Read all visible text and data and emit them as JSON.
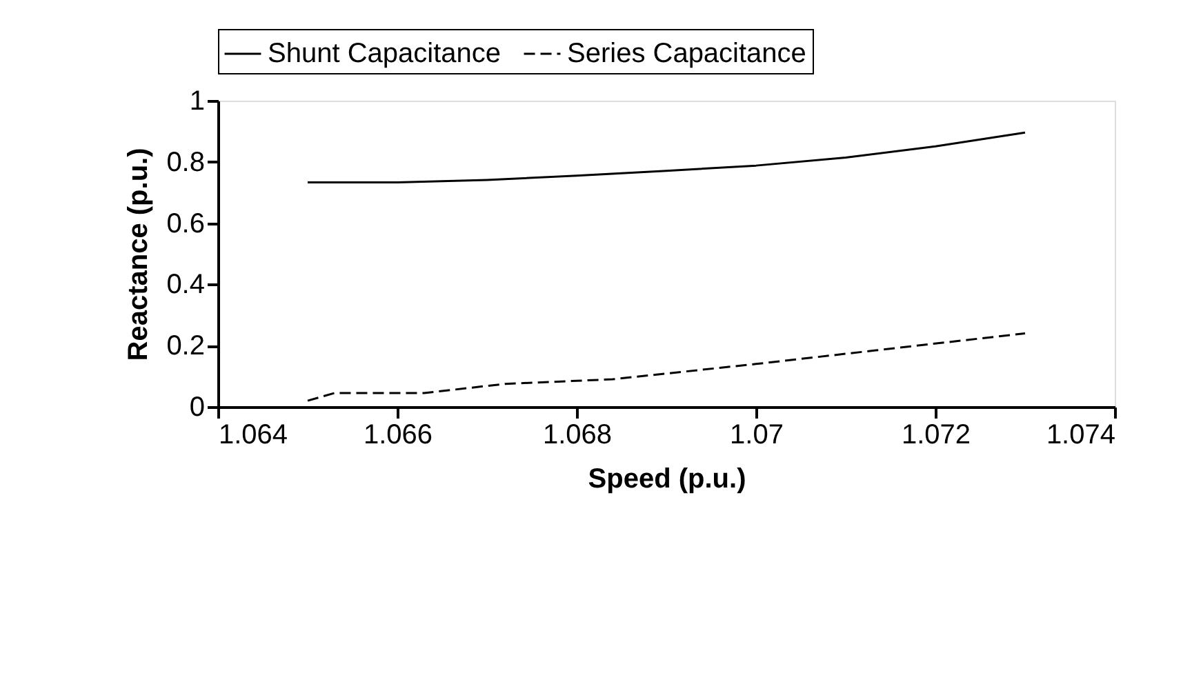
{
  "chart_data": {
    "type": "line",
    "xlabel": "Speed (p.u.)",
    "ylabel": "Reactance (p.u.)",
    "xlim": [
      1.064,
      1.074
    ],
    "xticks": [
      1.064,
      1.066,
      1.068,
      1.07,
      1.072,
      1.074
    ],
    "ylim": [
      0,
      1
    ],
    "yticks": [
      0,
      0.2,
      0.4,
      0.6,
      0.8,
      1
    ],
    "grid": false,
    "legend": "top",
    "marker": "none",
    "series": [
      {
        "name": "Shunt Capacitance",
        "color": "#000000",
        "line_style": "solid",
        "x": [
          1.065,
          1.066,
          1.067,
          1.068,
          1.069,
          1.07,
          1.071,
          1.072,
          1.073
        ],
        "values": [
          0.733,
          0.733,
          0.741,
          0.755,
          0.771,
          0.788,
          0.814,
          0.851,
          0.896
        ]
      },
      {
        "name": "Series Capacitance",
        "color": "#000000",
        "line_style": "dashed",
        "x": [
          1.065,
          1.0653,
          1.0663,
          1.0672,
          1.0684,
          1.07,
          1.073
        ],
        "values": [
          0.02,
          0.045,
          0.045,
          0.075,
          0.09,
          0.14,
          0.24
        ]
      }
    ]
  }
}
